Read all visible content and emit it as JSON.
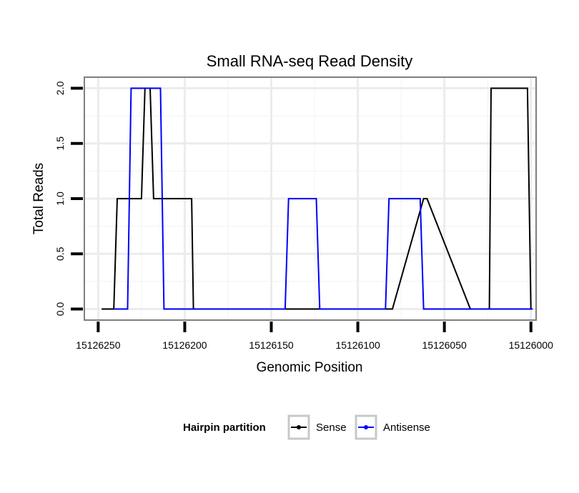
{
  "chart_data": {
    "type": "line",
    "title": "Small RNA-seq Read Density",
    "xlabel": "Genomic Position",
    "ylabel": "Total Reads",
    "xlim": [
      15126258,
      15125997
    ],
    "ylim": [
      -0.1,
      2.1
    ],
    "x_ticks": [
      15126250,
      15126200,
      15126150,
      15126100,
      15126050,
      15126000
    ],
    "x_tick_labels": [
      "15126250",
      "15126200",
      "15126150",
      "15126100",
      "15126050",
      "15126000"
    ],
    "y_ticks": [
      0,
      0.5,
      1,
      1.5,
      2
    ],
    "y_tick_labels": [
      "0.0",
      "0.5",
      "1.0",
      "1.5",
      "2.0"
    ],
    "grid": true,
    "legend": {
      "title": "Hairpin partition",
      "position": "bottom"
    },
    "series": [
      {
        "name": "Sense",
        "color": "#000000",
        "x": [
          15126248,
          15126241,
          15126239,
          15126225,
          15126223,
          15126221,
          15126220,
          15126218,
          15126196,
          15126195,
          15126190,
          15126184,
          15126182,
          15126160,
          15126158,
          15126140,
          15126138,
          15126124,
          15126122,
          15126106,
          15126104,
          15126084,
          15126080,
          15126062,
          15126060,
          15126035,
          15126033,
          15126024,
          15126023,
          15126022,
          15126002,
          15126000,
          15125999
        ],
        "y": [
          0,
          0,
          1,
          1,
          2,
          2,
          2,
          1,
          1,
          0,
          0,
          0,
          0,
          0,
          0,
          0,
          0,
          0,
          0,
          0,
          0,
          0,
          0,
          1,
          1,
          0,
          0,
          0,
          2,
          2,
          2,
          0,
          0
        ]
      },
      {
        "name": "Antisense",
        "color": "#0000ff",
        "x": [
          15126241,
          15126233,
          15126231,
          15126214,
          15126212,
          15126200,
          15126160,
          15126142,
          15126140,
          15126124,
          15126122,
          15126084,
          15126082,
          15126064,
          15126062,
          15126060,
          15126000,
          15125999
        ],
        "y": [
          0,
          0,
          2,
          2,
          0,
          0,
          0,
          0,
          1,
          1,
          0,
          0,
          1,
          1,
          0,
          0,
          0,
          0
        ]
      }
    ]
  }
}
